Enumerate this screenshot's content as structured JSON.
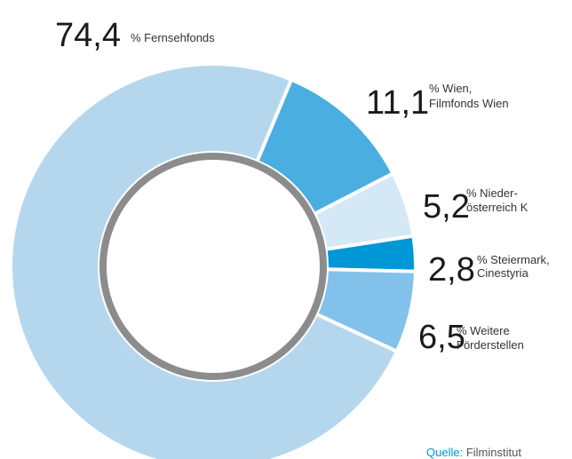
{
  "chart_data": {
    "type": "donut",
    "categories": [
      [
        "% Fernsehfonds"
      ],
      [
        "% Wien,",
        "Filmfonds Wien"
      ],
      [
        "% Nieder-",
        "österreich K"
      ],
      [
        "% Steiermark,",
        "Cinestyria"
      ],
      [
        "% Weitere",
        "Förderstellen"
      ]
    ],
    "values": [
      74.4,
      11.1,
      5.2,
      2.8,
      6.5
    ],
    "value_labels": [
      "74,4",
      "11,1",
      "5,2",
      "2,8",
      "6,5"
    ],
    "colors": [
      "#b5d7ee",
      "#4aaee0",
      "#d4e8f6",
      "#0097d6",
      "#82c2ea"
    ],
    "source_label": "Quelle:",
    "source": "Filminstitut"
  }
}
